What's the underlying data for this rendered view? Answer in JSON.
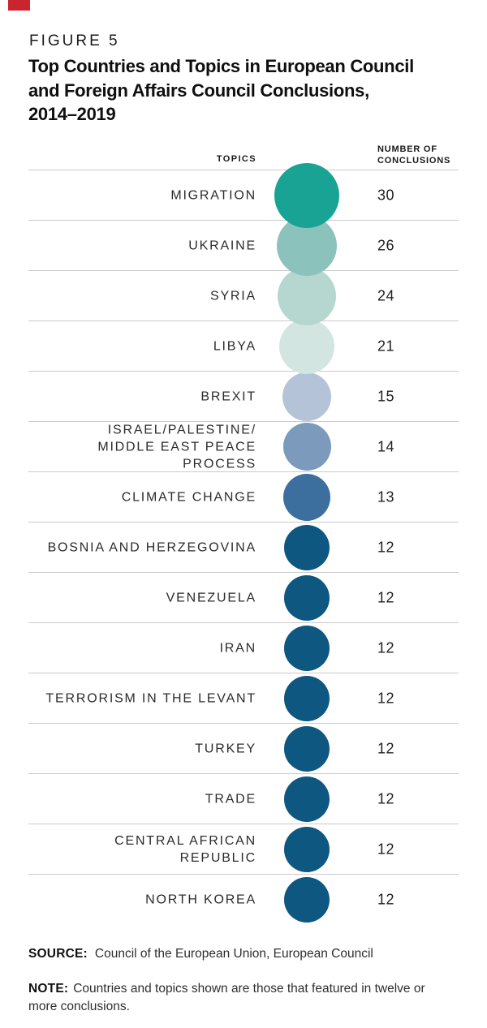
{
  "page": {
    "figure_label": "FIGURE 5",
    "title_line1": "Top Countries and Topics in European Council",
    "title_line2": "and Foreign Affairs Council Conclusions,",
    "title_line3": "2014–2019"
  },
  "table_headers": {
    "topics": "TOPICS",
    "value_line1": "NUMBER OF",
    "value_line2": "CONCLUSIONS"
  },
  "chart_data": {
    "type": "bubble",
    "title": "Top Countries and Topics in European Council and Foreign Affairs Council Conclusions, 2014–2019",
    "category_column_header": "TOPICS",
    "value_column_header": "NUMBER OF CONCLUSIONS",
    "layout": "vertical list, one bubble per row, bubble area encodes value, grid row dividers on",
    "rows": [
      {
        "topic": "MIGRATION",
        "value": 30,
        "color": "#18A394"
      },
      {
        "topic": "UKRAINE",
        "value": 26,
        "color": "#8BC2BB"
      },
      {
        "topic": "SYRIA",
        "value": 24,
        "color": "#B6D6D0"
      },
      {
        "topic": "LIBYA",
        "value": 21,
        "color": "#D3E5E0"
      },
      {
        "topic": "BREXIT",
        "value": 15,
        "color": "#B4C3D8"
      },
      {
        "topic": "ISRAEL/PALESTINE/\nMIDDLE EAST PEACE PROCESS",
        "value": 14,
        "color": "#7B9ABC"
      },
      {
        "topic": "CLIMATE CHANGE",
        "value": 13,
        "color": "#3D6F9E"
      },
      {
        "topic": "BOSNIA AND HERZEGOVINA",
        "value": 12,
        "color": "#0E5781"
      },
      {
        "topic": "VENEZUELA",
        "value": 12,
        "color": "#0E5781"
      },
      {
        "topic": "IRAN",
        "value": 12,
        "color": "#0E5781"
      },
      {
        "topic": "TERRORISM IN THE LEVANT",
        "value": 12,
        "color": "#0E5781"
      },
      {
        "topic": "TURKEY",
        "value": 12,
        "color": "#0E5781"
      },
      {
        "topic": "TRADE",
        "value": 12,
        "color": "#0E5781"
      },
      {
        "topic": "CENTRAL AFRICAN\nREPUBLIC",
        "value": 12,
        "color": "#0E5781"
      },
      {
        "topic": "NORTH KOREA",
        "value": 12,
        "color": "#0E5781"
      }
    ]
  },
  "footer": {
    "source_label": "SOURCE:",
    "source_text": "Council of the European Union, European Council",
    "note_label": "NOTE:",
    "note_text": "Countries and topics shown are those that featured in twelve or more conclusions."
  },
  "colors": {
    "accent_red": "#C9252E",
    "divider": "#CBCBCB",
    "max_bubble": "#18A394",
    "min_bubble": "#0E5781"
  }
}
